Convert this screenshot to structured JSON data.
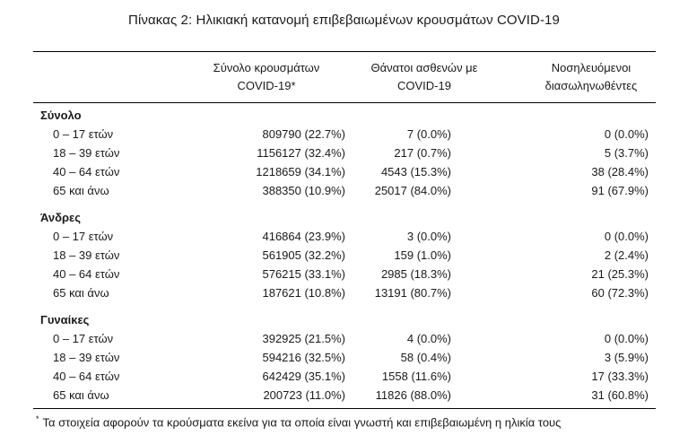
{
  "title": "Πίνακας 2: Ηλικιακή κατανομή επιβεβαιωμένων κρουσμάτων COVID-19",
  "headers": {
    "col1_line1": "Σύνολο κρουσμάτων",
    "col1_line2": "COVID-19*",
    "col2_line1": "Θάνατοι ασθενών με",
    "col2_line2": "COVID-19",
    "col3_line1": "Νοσηλευόμενοι",
    "col3_line2": "διασωληνωθέντες"
  },
  "groups": [
    {
      "title": "Σύνολο",
      "rows": [
        {
          "label": "0 – 17 ετών",
          "cases": "809790 (22.7%)",
          "deaths": "7 (0.0%)",
          "intubated": "0 (0.0%)"
        },
        {
          "label": "18 – 39 ετών",
          "cases": "1156127 (32.4%)",
          "deaths": "217 (0.7%)",
          "intubated": "5 (3.7%)"
        },
        {
          "label": "40 – 64 ετών",
          "cases": "1218659 (34.1%)",
          "deaths": "4543 (15.3%)",
          "intubated": "38 (28.4%)"
        },
        {
          "label": "65 και άνω",
          "cases": "388350 (10.9%)",
          "deaths": "25017 (84.0%)",
          "intubated": "91 (67.9%)"
        }
      ]
    },
    {
      "title": "Άνδρες",
      "rows": [
        {
          "label": "0 – 17 ετών",
          "cases": "416864 (23.9%)",
          "deaths": "3 (0.0%)",
          "intubated": "0 (0.0%)"
        },
        {
          "label": "18 – 39 ετών",
          "cases": "561905 (32.2%)",
          "deaths": "159 (1.0%)",
          "intubated": "2 (2.4%)"
        },
        {
          "label": "40 – 64 ετών",
          "cases": "576215 (33.1%)",
          "deaths": "2985 (18.3%)",
          "intubated": "21 (25.3%)"
        },
        {
          "label": "65 και άνω",
          "cases": "187621 (10.8%)",
          "deaths": "13191 (80.7%)",
          "intubated": "60 (72.3%)"
        }
      ]
    },
    {
      "title": "Γυναίκες",
      "rows": [
        {
          "label": "0 – 17 ετών",
          "cases": "392925 (21.5%)",
          "deaths": "4 (0.0%)",
          "intubated": "0 (0.0%)"
        },
        {
          "label": "18 – 39 ετών",
          "cases": "594216 (32.5%)",
          "deaths": "58 (0.4%)",
          "intubated": "3 (5.9%)"
        },
        {
          "label": "40 – 64 ετών",
          "cases": "642429 (35.1%)",
          "deaths": "1558 (11.6%)",
          "intubated": "17 (33.3%)"
        },
        {
          "label": "65 και άνω",
          "cases": "200723 (11.0%)",
          "deaths": "11826 (88.0%)",
          "intubated": "31 (60.8%)"
        }
      ]
    }
  ],
  "footnote": {
    "marker": "*",
    "text": "Τα στοιχεία αφορούν τα κρούσματα εκείνα για τα οποία είναι γνωστή και επιβεβαιωμένη η ηλικία τους"
  }
}
